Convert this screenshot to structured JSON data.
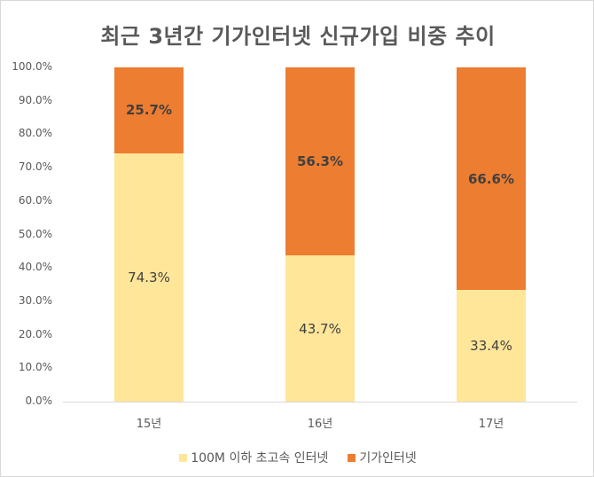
{
  "chart_data": {
    "type": "bar",
    "stacked": true,
    "title": "최근 3년간 기가인터넷 신규가입 비중 추이",
    "categories": [
      "15년",
      "16년",
      "17년"
    ],
    "series": [
      {
        "name": "100M 이하 초고속 인터넷",
        "color": "#FFE699",
        "values": [
          74.3,
          43.7,
          33.4
        ],
        "labels": [
          "74.3%",
          "43.7%",
          "33.4%"
        ]
      },
      {
        "name": "기가인터넷",
        "color": "#ED7D31",
        "values": [
          25.7,
          56.3,
          66.6
        ],
        "labels": [
          "25.7%",
          "56.3%",
          "66.6%"
        ]
      }
    ],
    "xlabel": "",
    "ylabel": "",
    "ylim": [
      0,
      100
    ],
    "yticks": [
      "100.0%",
      "90.0%",
      "80.0%",
      "70.0%",
      "60.0%",
      "50.0%",
      "40.0%",
      "30.0%",
      "20.0%",
      "10.0%",
      "0.0%"
    ],
    "grid": false,
    "legend_position": "bottom"
  },
  "legend": {
    "items": [
      {
        "label": "100M 이하 초고속 인터넷",
        "color": "#FFE699"
      },
      {
        "label": "기가인터넷",
        "color": "#ED7D31"
      }
    ]
  }
}
